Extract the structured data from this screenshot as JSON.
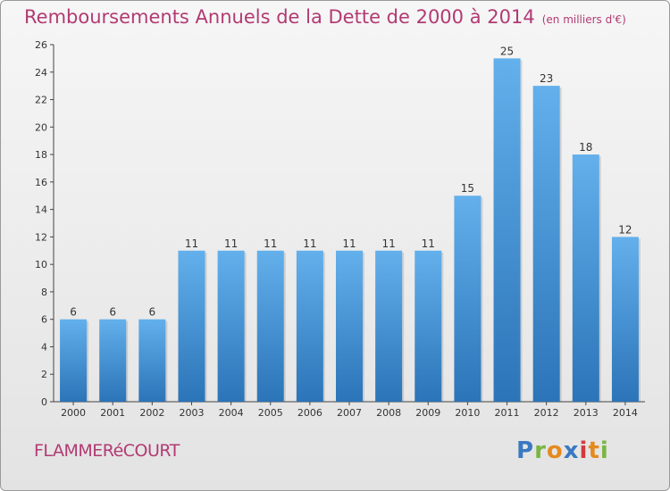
{
  "header": {
    "title": "Remboursements Annuels de la Dette de 2000 à 2014",
    "subtitle": "(en milliers d'€)"
  },
  "footer": {
    "town": "FLAMMERéCOURT",
    "logo": {
      "letters": [
        "P",
        "r",
        "o",
        "x",
        "i",
        "t",
        "i"
      ],
      "colors": [
        "#3a78c2",
        "#7ab642",
        "#e58a1f",
        "#3a78c2",
        "#d23b3b",
        "#e58a1f",
        "#7ab642"
      ]
    }
  },
  "chart_data": {
    "type": "bar",
    "title": "Remboursements Annuels de la Dette de 2000 à 2014",
    "subtitle": "(en milliers d'€)",
    "categories": [
      "2000",
      "2001",
      "2002",
      "2003",
      "2004",
      "2005",
      "2006",
      "2007",
      "2008",
      "2009",
      "2010",
      "2011",
      "2012",
      "2013",
      "2014"
    ],
    "values": [
      6,
      6,
      6,
      11,
      11,
      11,
      11,
      11,
      11,
      11,
      15,
      25,
      23,
      18,
      12
    ],
    "ylim": [
      0,
      26
    ],
    "yticks": [
      0,
      2,
      4,
      6,
      8,
      10,
      12,
      14,
      16,
      18,
      20,
      22,
      24,
      26
    ],
    "grid": false,
    "bar_color_top": "#63b0ec",
    "bar_color_bottom": "#2b74b8"
  }
}
